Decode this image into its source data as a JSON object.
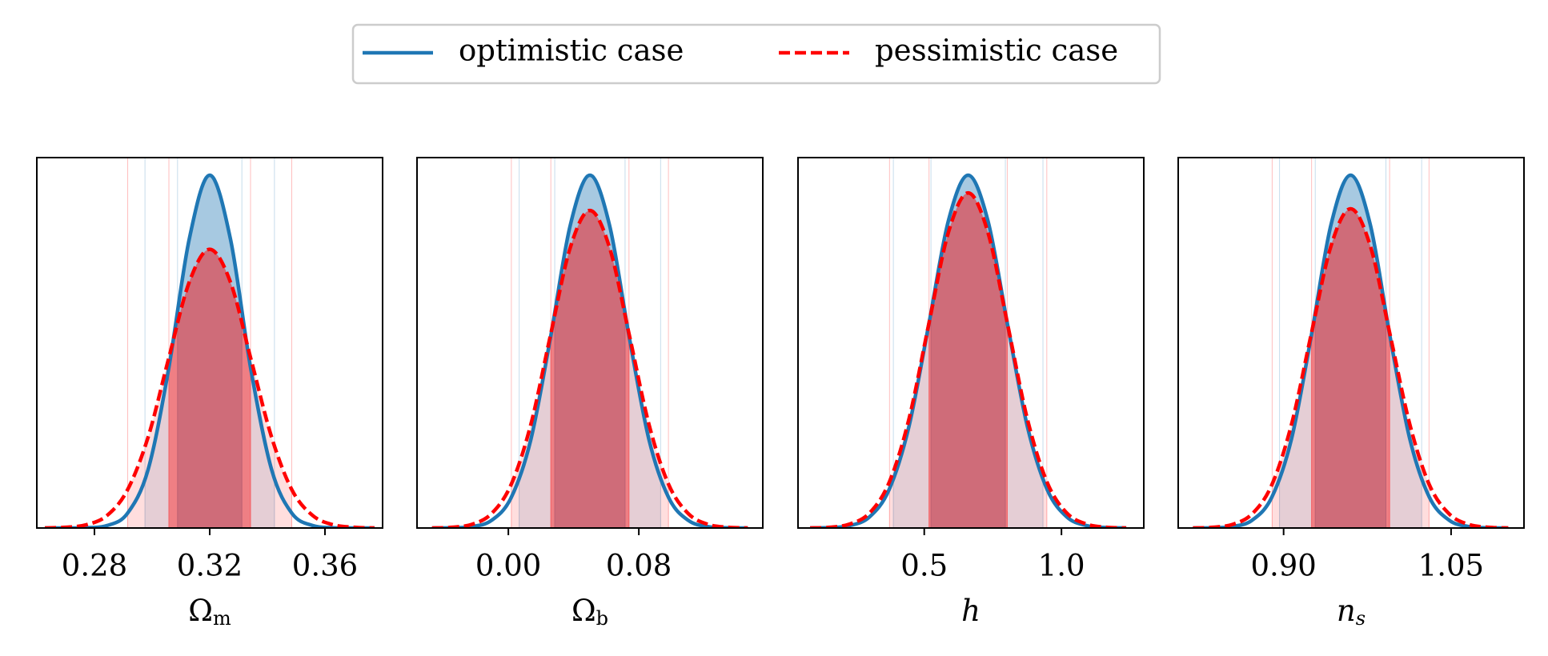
{
  "chart_data": [
    {
      "type": "line",
      "xlabel": "Ω",
      "xlabel_sub": "m",
      "xlabel_style": "upright",
      "legend": "upper center",
      "x": [
        0.2628,
        0.27,
        0.2771,
        0.2843,
        0.2914,
        0.2986,
        0.3057,
        0.3129,
        0.32,
        0.3272,
        0.3343,
        0.3415,
        0.3486,
        0.3558,
        0.3629,
        0.3701,
        0.3772
      ],
      "xlim": [
        0.26,
        0.38
      ],
      "xticks": [
        0.28,
        0.32,
        0.36
      ],
      "ylim": [
        0,
        1.05
      ],
      "series": [
        {
          "name": "optimistic case",
          "color": "#1f77b4",
          "linestyle": "solid",
          "values": [
            0,
            0,
            0.0007,
            0.0067,
            0.041,
            0.165,
            0.449,
            0.819,
            1,
            0.819,
            0.449,
            0.165,
            0.041,
            0.0067,
            0.0007,
            0,
            0
          ],
          "interval_68": [
            0.3087,
            0.3313
          ],
          "interval_95": [
            0.2974,
            0.3426
          ]
        },
        {
          "name": "pessimistic case",
          "color": "#ff0000",
          "linestyle": "dashed",
          "values": [
            0,
            0.002,
            0.009,
            0.035,
            0.107,
            0.257,
            0.479,
            0.697,
            0.79,
            0.697,
            0.479,
            0.257,
            0.107,
            0.035,
            0.009,
            0.002,
            0
          ],
          "interval_68": [
            0.3057,
            0.3343
          ],
          "interval_95": [
            0.2914,
            0.3486
          ]
        }
      ]
    },
    {
      "type": "line",
      "xlabel": "Ω",
      "xlabel_sub": "b",
      "xlabel_style": "upright",
      "x": [
        -0.0468,
        -0.0347,
        -0.0226,
        -0.0105,
        0.0016,
        0.0137,
        0.0258,
        0.0379,
        0.05,
        0.0621,
        0.0742,
        0.0863,
        0.0984,
        0.1105,
        0.1226,
        0.1347,
        0.1468
      ],
      "xlim": [
        -0.056,
        0.156
      ],
      "xticks": [
        {
          "value": 0,
          "label": "0.00"
        },
        0.08
      ],
      "ylim": [
        0,
        1.05
      ],
      "series": [
        {
          "name": "optimistic case",
          "color": "#1f77b4",
          "linestyle": "solid",
          "values": [
            0.0001,
            0.0005,
            0.0038,
            0.021,
            0.085,
            0.249,
            0.539,
            0.857,
            1,
            0.857,
            0.539,
            0.249,
            0.085,
            0.021,
            0.0038,
            0.0005,
            0.0001
          ],
          "interval_68": [
            0.0282,
            0.0718
          ],
          "interval_95": [
            0.0064,
            0.0936
          ]
        },
        {
          "name": "pessimistic case",
          "color": "#ff0000",
          "linestyle": "dashed",
          "values": [
            0,
            0.002,
            0.01,
            0.04,
            0.122,
            0.292,
            0.546,
            0.794,
            0.9,
            0.794,
            0.546,
            0.292,
            0.122,
            0.04,
            0.01,
            0.002,
            0
          ],
          "interval_68": [
            0.0258,
            0.0742
          ],
          "interval_95": [
            0.0016,
            0.0984
          ]
        }
      ]
    },
    {
      "type": "line",
      "xlabel": "h",
      "xlabel_style": "italic",
      "x": [
        0.084,
        0.156,
        0.228,
        0.3,
        0.372,
        0.444,
        0.516,
        0.588,
        0.66,
        0.732,
        0.804,
        0.876,
        0.948,
        1.02,
        1.092,
        1.164,
        1.236
      ],
      "xlim": [
        0.04,
        1.3
      ],
      "xticks": [
        0.5,
        {
          "value": 1,
          "label": "1.0"
        }
      ],
      "ylim": [
        0,
        1.05
      ],
      "series": [
        {
          "name": "optimistic case",
          "color": "#1f77b4",
          "linestyle": "solid",
          "values": [
            0.0002,
            0.0011,
            0.0068,
            0.031,
            0.109,
            0.287,
            0.575,
            0.871,
            1,
            0.871,
            0.575,
            0.287,
            0.109,
            0.031,
            0.0068,
            0.0011,
            0.0002
          ],
          "interval_68": [
            0.523,
            0.797
          ],
          "interval_95": [
            0.386,
            0.934
          ]
        },
        {
          "name": "pessimistic case",
          "color": "#ff0000",
          "linestyle": "dashed",
          "values": [
            0,
            0.002,
            0.011,
            0.042,
            0.129,
            0.308,
            0.576,
            0.838,
            0.95,
            0.838,
            0.576,
            0.308,
            0.129,
            0.042,
            0.011,
            0.002,
            0
          ],
          "interval_68": [
            0.516,
            0.804
          ],
          "interval_95": [
            0.372,
            0.948
          ]
        }
      ]
    },
    {
      "type": "line",
      "xlabel": "n",
      "xlabel_sub": "s",
      "xlabel_style": "italic",
      "x": [
        0.8188,
        0.8365,
        0.8541,
        0.8718,
        0.8894,
        0.9071,
        0.9247,
        0.9424,
        0.96,
        0.9777,
        0.9953,
        1.013,
        1.0306,
        1.0483,
        1.0659,
        1.0836,
        1.1012
      ],
      "xlim": [
        0.8056,
        1.1153
      ],
      "xticks": [
        {
          "value": 0.9,
          "label": "0.90"
        },
        1.05
      ],
      "ylim": [
        0,
        1.05
      ],
      "series": [
        {
          "name": "optimistic case",
          "color": "#1f77b4",
          "linestyle": "solid",
          "values": [
            0.0001,
            0.0006,
            0.0041,
            0.022,
            0.087,
            0.253,
            0.543,
            0.859,
            1,
            0.859,
            0.543,
            0.253,
            0.087,
            0.022,
            0.0041,
            0.0006,
            0.0001
          ],
          "interval_68": [
            0.928,
            0.992
          ],
          "interval_95": [
            0.896,
            1.024
          ]
        },
        {
          "name": "pessimistic case",
          "color": "#ff0000",
          "linestyle": "dashed",
          "values": [
            0,
            0.002,
            0.01,
            0.04,
            0.122,
            0.294,
            0.549,
            0.799,
            0.905,
            0.799,
            0.549,
            0.294,
            0.122,
            0.04,
            0.01,
            0.002,
            0
          ],
          "interval_68": [
            0.9247,
            0.9953
          ],
          "interval_95": [
            0.8894,
            1.0306
          ]
        }
      ]
    }
  ]
}
